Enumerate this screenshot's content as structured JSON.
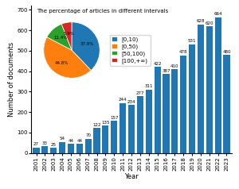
{
  "chart_data": [
    {
      "type": "bar",
      "categories": [
        "2001",
        "2002",
        "2003",
        "2004",
        "2005",
        "2006",
        "2007",
        "2008",
        "2009",
        "2010",
        "2011",
        "2012",
        "2013",
        "2014",
        "2015",
        "2016",
        "2017",
        "2018",
        "2019",
        "2020",
        "2021",
        "2022",
        "2023"
      ],
      "values": [
        27,
        33,
        25,
        54,
        44,
        44,
        70,
        122,
        135,
        157,
        244,
        234,
        277,
        311,
        422,
        387,
        410,
        478,
        531,
        628,
        620,
        664,
        480
      ],
      "xlabel": "Year",
      "ylabel": "Number of documents",
      "ylim": [
        0,
        720
      ],
      "yticks": [
        0,
        100,
        200,
        300,
        400,
        500,
        600,
        700
      ],
      "data_labels": true
    },
    {
      "type": "pie",
      "title": "The percentage of articles in different intervals",
      "categories": [
        "[0,10)",
        "[0,50)",
        "[50,100)",
        "[100,+∞)"
      ],
      "values": [
        37.9,
        44.8,
        11.4,
        5.9
      ],
      "value_labels": [
        "37.9%",
        "44.8%",
        "11.4%",
        "5.9%"
      ],
      "legend": "right"
    }
  ]
}
